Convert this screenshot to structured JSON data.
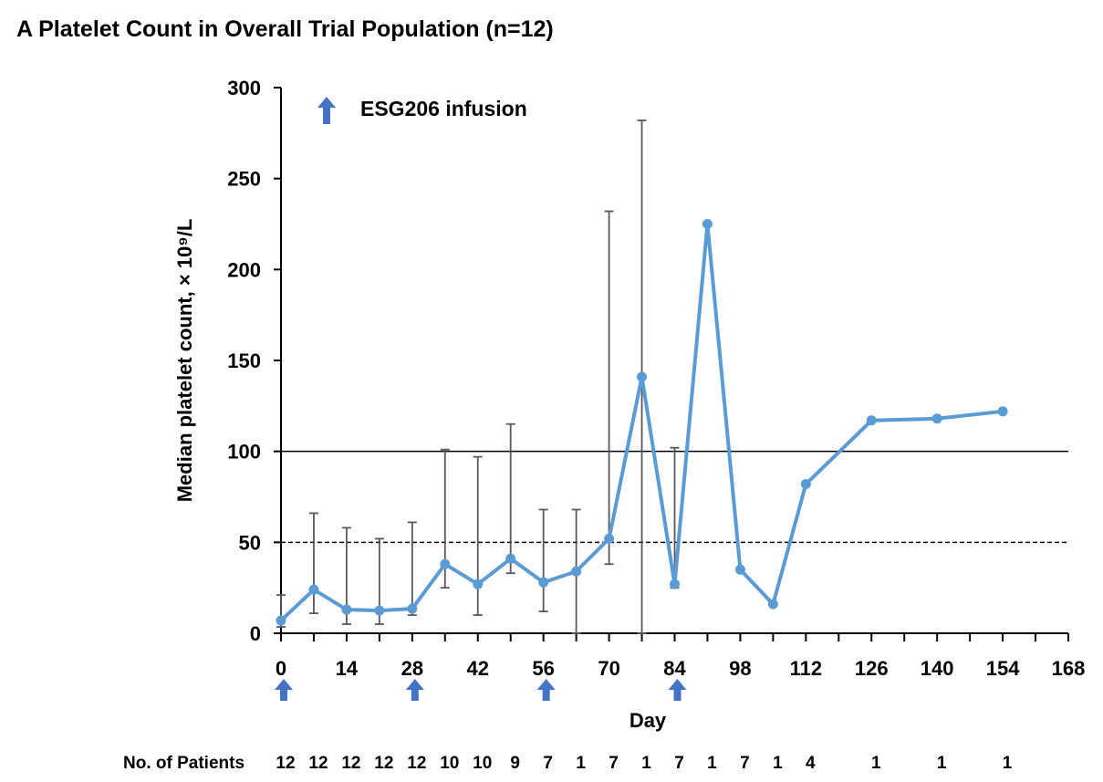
{
  "chart_data": {
    "type": "line",
    "title": "A Platelet Count in Overall Trial Population (n=12)",
    "xlabel": "Day",
    "ylabel": "Median platelet count, × 10⁹/L",
    "xlim": [
      0,
      168
    ],
    "ylim": [
      0,
      300
    ],
    "xticks": [
      0,
      14,
      28,
      42,
      56,
      70,
      84,
      98,
      112,
      126,
      140,
      154,
      168
    ],
    "yticks": [
      0,
      50,
      100,
      150,
      200,
      250,
      300
    ],
    "grid": false,
    "color": "#5B9BD5",
    "errorbar_color": "#595959",
    "x": [
      0,
      7,
      14,
      21,
      28,
      35,
      42,
      49,
      56,
      63,
      70,
      77,
      84,
      91,
      98,
      105,
      112,
      126,
      140,
      154
    ],
    "values": [
      7,
      24,
      13,
      12.5,
      13.5,
      38,
      27,
      41,
      28,
      34,
      52,
      141,
      27,
      225,
      35,
      16,
      82,
      117,
      118,
      122
    ],
    "error_low": [
      3.5,
      11,
      5,
      5,
      10,
      25,
      10,
      33,
      12,
      0,
      38,
      0,
      25,
      null,
      null,
      null,
      null,
      null,
      null,
      null
    ],
    "error_high": [
      21,
      66,
      58,
      52,
      61,
      101,
      97,
      115,
      68,
      68,
      232,
      282,
      102,
      null,
      null,
      null,
      null,
      null,
      null,
      null
    ],
    "reference_lines": [
      {
        "y": 100,
        "style": "solid"
      },
      {
        "y": 50,
        "style": "dashed"
      }
    ],
    "infusion_days": [
      0,
      28,
      56,
      84
    ],
    "legend": {
      "label": "ESG206 infusion",
      "icon": "up-arrow-icon",
      "color": "#4472C4",
      "placement": "top-left"
    },
    "patients_label": "No. of Patients",
    "patients": [
      "12",
      "12",
      "12",
      "12",
      "12",
      "10",
      "10",
      "9",
      "7",
      "1",
      "7",
      "1",
      "7",
      "1",
      "7",
      "1",
      "4",
      "1",
      "1",
      "1"
    ]
  }
}
